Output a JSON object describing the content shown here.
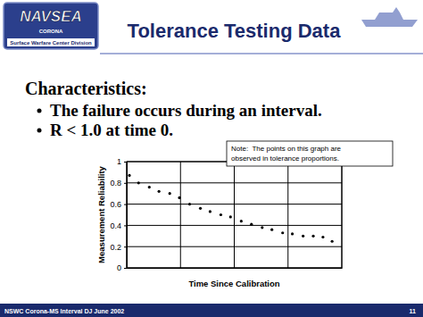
{
  "slide": {
    "logo": [
      "NAVSEA",
      "CORONA",
      "Surface Warfare Center Division"
    ],
    "title": "Tolerance Testing Data",
    "heading": "Characteristics:",
    "bullets": [
      "The failure occurs during an interval.",
      "R < 1.0 at time 0."
    ],
    "footer": "NSWC Corona-MS Interval DJ June 2002",
    "page": "11"
  },
  "chart_data": {
    "type": "scatter",
    "x_label": "Time Since Calibration",
    "y_label": "Measurement Reliability",
    "note": [
      "Note:  The points on this graph are",
      "observed in tolerance proportions."
    ],
    "x": [
      0.05,
      0.22,
      0.42,
      0.6,
      0.8,
      0.98,
      1.17,
      1.37,
      1.55,
      1.75,
      1.93,
      2.13,
      2.32,
      2.52,
      2.7,
      2.9,
      3.08,
      3.28,
      3.47,
      3.65,
      3.82
    ],
    "values": [
      0.87,
      0.8,
      0.76,
      0.72,
      0.7,
      0.66,
      0.6,
      0.56,
      0.53,
      0.5,
      0.48,
      0.44,
      0.41,
      0.38,
      0.36,
      0.33,
      0.32,
      0.3,
      0.3,
      0.29,
      0.25
    ],
    "color": "#000000",
    "marker": "circle",
    "xlim": [
      0,
      4
    ],
    "xticks": [
      0,
      1,
      2,
      3,
      4
    ],
    "ylim": [
      0,
      1
    ],
    "yticks": [
      0,
      0.2,
      0.4,
      0.6,
      0.8,
      1
    ],
    "grid": true,
    "tick_labels": "y"
  }
}
